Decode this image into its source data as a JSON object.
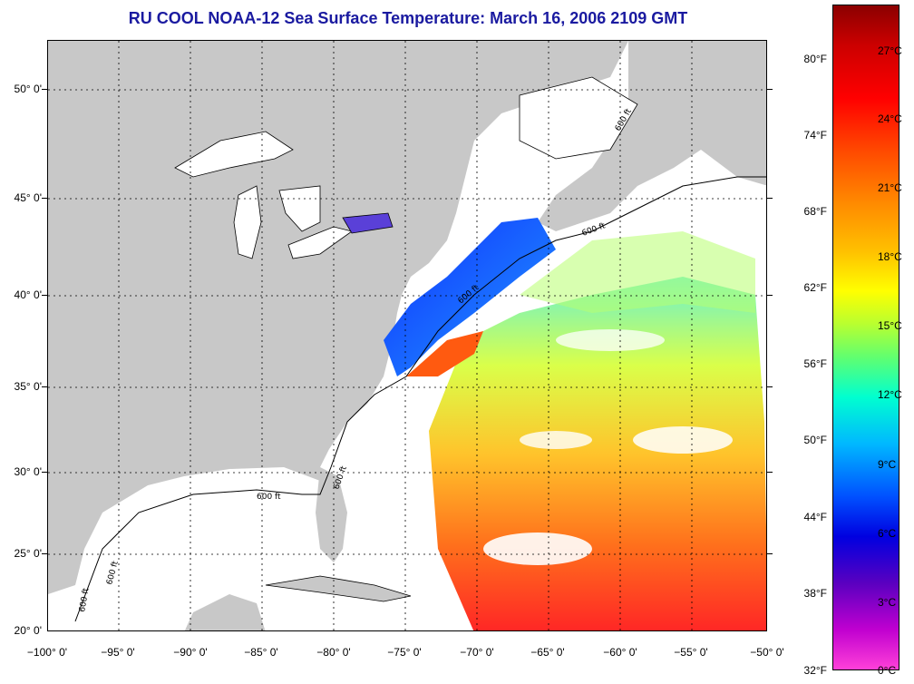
{
  "title": "RU COOL  NOAA-12  Sea Surface Temperature:  March 16, 2006 2109 GMT",
  "map": {
    "lat_labels": [
      "50° 0'",
      "45° 0'",
      "40° 0'",
      "35° 0'",
      "30° 0'",
      "25° 0'",
      "20° 0'"
    ],
    "lon_labels": [
      "−100° 0'",
      "−95° 0'",
      "−90° 0'",
      "−85° 0'",
      "−80° 0'",
      "−75° 0'",
      "−70° 0'",
      "−65° 0'",
      "−60° 0'",
      "−55° 0'",
      "−50° 0'"
    ],
    "contour_labels": [
      "600 ft",
      "600 ft",
      "600 ft",
      "600 ft",
      "600 ft",
      "600 ft",
      "600 ft"
    ],
    "colors": {
      "land": "#c8c8c8",
      "cloud": "#ffffff",
      "grid": "#000000"
    }
  },
  "colorbar": {
    "fahrenheit": [
      "80°F",
      "74°F",
      "68°F",
      "62°F",
      "56°F",
      "50°F",
      "44°F",
      "38°F",
      "32°F"
    ],
    "celsius": [
      "27°C",
      "24°C",
      "21°C",
      "18°C",
      "15°C",
      "12°C",
      "9°C",
      "6°C",
      "3°C",
      "0°C"
    ]
  }
}
